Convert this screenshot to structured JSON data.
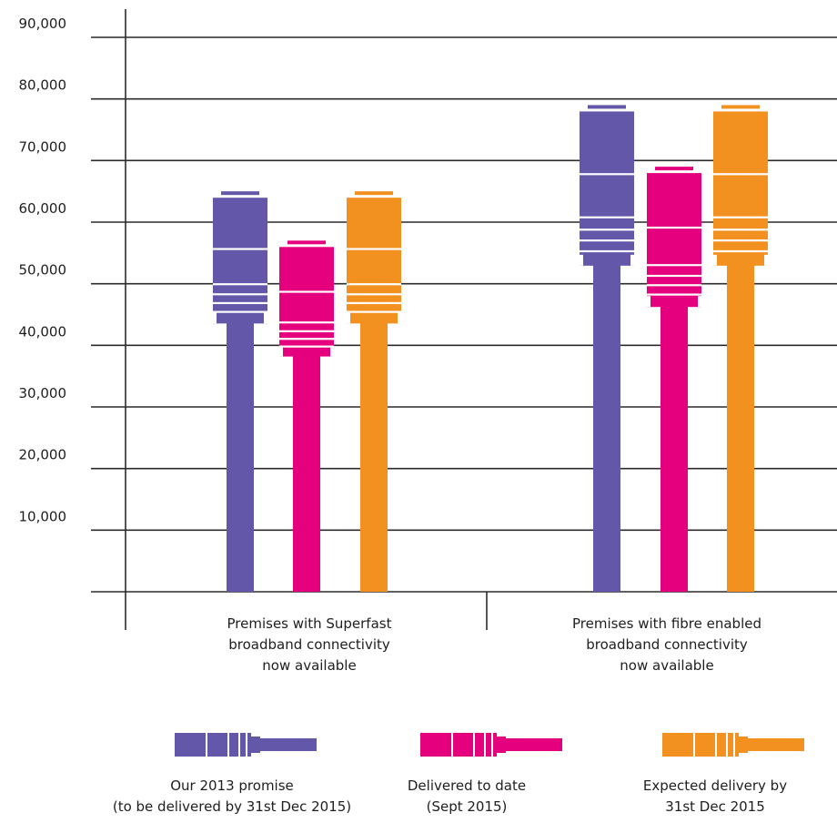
{
  "chart_data": {
    "type": "bar",
    "title": "",
    "xlabel": "",
    "ylabel": "",
    "ylim": [
      0,
      90000
    ],
    "yticks": [
      "10,000",
      "20,000",
      "30,000",
      "40,000",
      "50,000",
      "60,000",
      "70,000",
      "80,000",
      "90,000"
    ],
    "y_tick_values": [
      10000,
      20000,
      30000,
      40000,
      50000,
      60000,
      70000,
      80000,
      90000
    ],
    "grid": true,
    "legend_position": "bottom",
    "categories": [
      [
        "Premises with Superfast",
        "broadband connectivity",
        "now available"
      ],
      [
        "Premises with fibre enabled",
        "broadband connectivity",
        "now available"
      ]
    ],
    "series": [
      {
        "name": [
          "Our 2013 promise",
          "(to be delivered by 31st Dec 2015)"
        ],
        "color": "#6257a8",
        "values": [
          65000,
          79000
        ]
      },
      {
        "name": [
          "Delivered to date",
          "(Sept 2015)"
        ],
        "color": "#e5007e",
        "values": [
          57000,
          69000
        ]
      },
      {
        "name": [
          "Expected delivery by",
          "31st Dec 2015"
        ],
        "color": "#f39120",
        "values": [
          65000,
          79000
        ]
      }
    ]
  }
}
